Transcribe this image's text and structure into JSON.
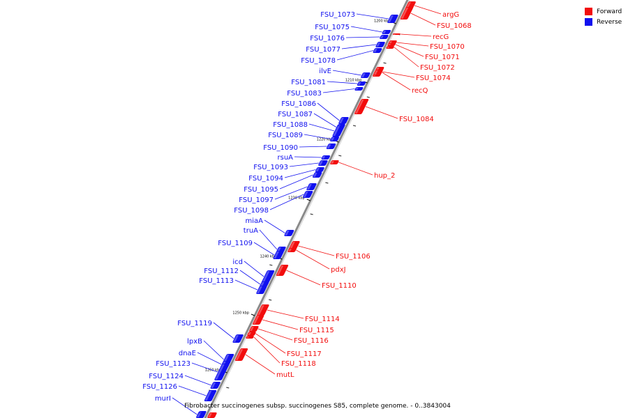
{
  "colors": {
    "forward": "#f20d0d",
    "reverse": "#1010ef",
    "backbone": "#8a8a8a"
  },
  "legend": [
    {
      "label": "Forward",
      "color": "#f20d0d"
    },
    {
      "label": "Reverse",
      "color": "#1010ef"
    }
  ],
  "caption": "Fibrobacter succinogenes subsp. succinogenes S85, complete genome. - 0..3843004",
  "ticks": [
    "1200 kbp",
    "1210 kbp",
    "1220 kbp",
    "1230 kbp",
    "1240 kbp",
    "1250 kbp",
    "1260 kbp"
  ],
  "reverse_genes": [
    "FSU_1073",
    "FSU_1075",
    "FSU_1076",
    "FSU_1077",
    "FSU_1078",
    "ilvE",
    "FSU_1081",
    "FSU_1083",
    "FSU_1086",
    "FSU_1087",
    "FSU_1088",
    "FSU_1089",
    "FSU_1090",
    "rsuA",
    "FSU_1093",
    "FSU_1094",
    "FSU_1095",
    "FSU_1097",
    "FSU_1098",
    "miaA",
    "truA",
    "FSU_1109",
    "icd",
    "FSU_1112",
    "FSU_1113",
    "FSU_1119",
    "lpxB",
    "dnaE",
    "FSU_1123",
    "FSU_1124",
    "FSU_1126",
    "murI"
  ],
  "forward_genes": [
    "argG",
    "FSU_1068",
    "recG",
    "FSU_1070",
    "FSU_1071",
    "FSU_1072",
    "FSU_1074",
    "recQ",
    "FSU_1084",
    "hup_2",
    "FSU_1106",
    "pdxJ",
    "FSU_1110",
    "FSU_1114",
    "FSU_1115",
    "FSU_1116",
    "FSU_1117",
    "FSU_1118",
    "mutL"
  ]
}
